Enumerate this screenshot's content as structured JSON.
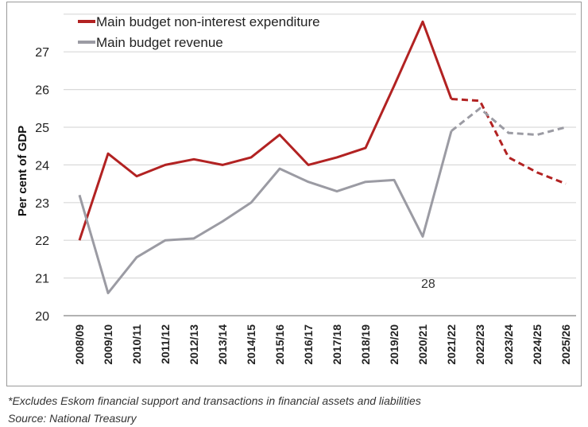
{
  "chart_data": {
    "type": "line",
    "title": "",
    "xlabel": "",
    "ylabel": "Per cent of GDP",
    "ylim": [
      20,
      28
    ],
    "yticks": [
      20,
      21,
      22,
      23,
      24,
      25,
      26,
      27
    ],
    "grid": true,
    "legend_position": "top-left",
    "categories": [
      "2008/09",
      "2009/10",
      "2010/11",
      "2011/12",
      "2012/13",
      "2013/14",
      "2014/15",
      "2015/16",
      "2016/17",
      "2017/18",
      "2018/19",
      "2019/20",
      "2020/21",
      "2021/22",
      "2022/23",
      "2023/24",
      "2024/25",
      "2025/26"
    ],
    "forecast_from": "2021/22",
    "series": [
      {
        "name": "Main budget non-interest expenditure",
        "color": "#b22222",
        "values": [
          22.0,
          24.3,
          23.7,
          24.0,
          24.15,
          24.0,
          24.2,
          24.8,
          24.0,
          24.2,
          24.45,
          26.1,
          27.8,
          25.75,
          25.7,
          24.2,
          23.8,
          23.5
        ]
      },
      {
        "name": "Main budget revenue",
        "color": "#9b9ba3",
        "values": [
          23.2,
          20.6,
          21.55,
          22.0,
          22.05,
          22.5,
          23.0,
          23.9,
          23.55,
          23.3,
          23.55,
          23.6,
          22.1,
          24.9,
          25.5,
          24.85,
          24.8,
          25.0
        ]
      }
    ],
    "annotations": [
      "28"
    ]
  },
  "footnote": "*Excludes Eskom financial support and transactions in financial assets and liabilities",
  "source": "Source: National Treasury"
}
